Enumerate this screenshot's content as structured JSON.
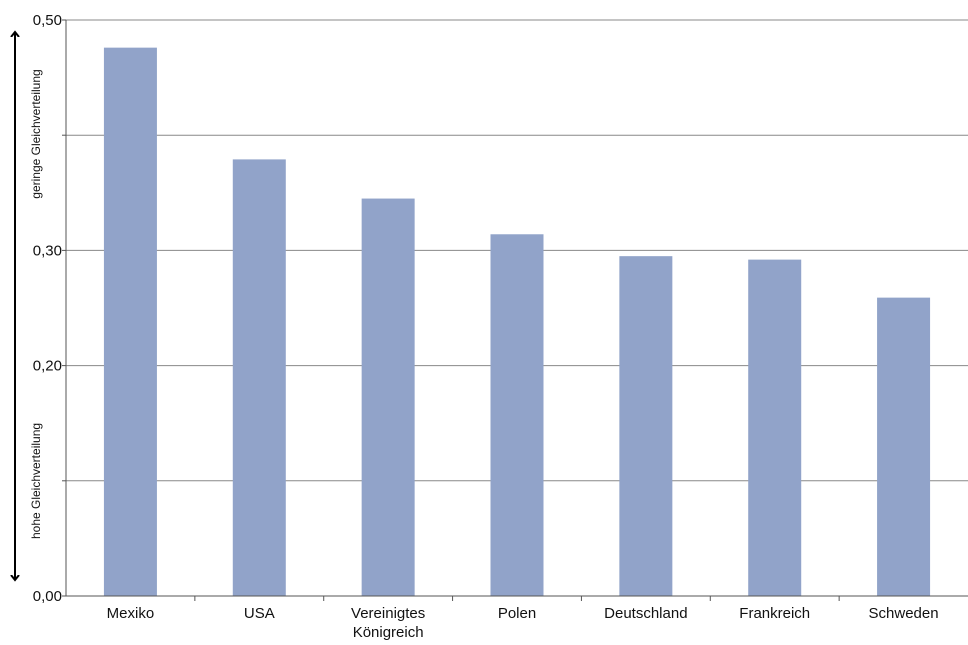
{
  "chart_data": {
    "type": "bar",
    "categories": [
      "Mexiko",
      "USA",
      "Vereinigtes Königreich",
      "Polen",
      "Deutschland",
      "Frankreich",
      "Schweden"
    ],
    "category_lines": [
      [
        "Mexiko"
      ],
      [
        "USA"
      ],
      [
        "Vereinigtes",
        "Königreich"
      ],
      [
        "Polen"
      ],
      [
        "Deutschland"
      ],
      [
        "Frankreich"
      ],
      [
        "Schweden"
      ]
    ],
    "values": [
      0.476,
      0.379,
      0.345,
      0.314,
      0.295,
      0.292,
      0.259
    ],
    "ylim": [
      0,
      0.5
    ],
    "yticks": [
      0,
      0.1,
      0.2,
      0.3,
      0.4,
      0.5
    ],
    "ytick_labels": [
      "0,00",
      "",
      "0,20",
      "0,30",
      "",
      "0,50"
    ],
    "grid": true,
    "bar_color": "#91a3c9",
    "axis_color": "#555555",
    "grid_color": "#888888",
    "axis_annotation": {
      "top": "geringe Gleichverteilung",
      "bottom": "hohe Gleichverteilung"
    }
  }
}
